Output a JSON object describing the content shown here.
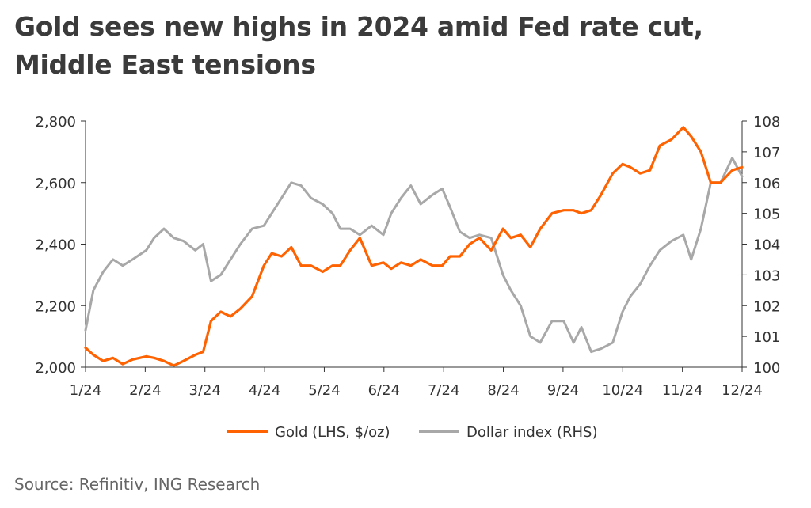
{
  "title": "Gold sees new highs in 2024 amid Fed rate cut, Middle East tensions",
  "source": "Source: Refinitiv, ING Research",
  "colors": {
    "gold": "#FF6200",
    "dollar": "#A8A8A8",
    "axis": "#333333"
  },
  "chart_data": {
    "type": "line",
    "title": "Gold sees new highs in 2024 amid Fed rate cut, Middle East tensions",
    "x_tick_labels": [
      "1/24",
      "2/24",
      "3/24",
      "4/24",
      "5/24",
      "6/24",
      "7/24",
      "8/24",
      "9/24",
      "10/24",
      "11/24",
      "12/24"
    ],
    "x_range": [
      "2024-01-01",
      "2024-12-01"
    ],
    "y_left": {
      "ylim": [
        2000,
        2800
      ],
      "ticks": [
        "2,000",
        "2,200",
        "2,400",
        "2,600",
        "2,800"
      ],
      "tick_values": [
        2000,
        2200,
        2400,
        2600,
        2800
      ]
    },
    "y_right": {
      "ylim": [
        100,
        108
      ],
      "ticks": [
        "100",
        "101",
        "102",
        "103",
        "104",
        "105",
        "106",
        "107",
        "108"
      ],
      "tick_values": [
        100,
        101,
        102,
        103,
        104,
        105,
        106,
        107,
        108
      ]
    },
    "legend_position": "bottom-center",
    "grid": false,
    "series": [
      {
        "name": "Gold (LHS, $/oz)",
        "axis": "left",
        "color": "#FF6200",
        "x": [
          "2024-01-01",
          "2024-01-05",
          "2024-01-10",
          "2024-01-15",
          "2024-01-20",
          "2024-01-25",
          "2024-02-01",
          "2024-02-05",
          "2024-02-10",
          "2024-02-15",
          "2024-02-20",
          "2024-02-26",
          "2024-03-01",
          "2024-03-05",
          "2024-03-10",
          "2024-03-15",
          "2024-03-20",
          "2024-03-26",
          "2024-04-01",
          "2024-04-05",
          "2024-04-10",
          "2024-04-15",
          "2024-04-20",
          "2024-04-25",
          "2024-05-01",
          "2024-05-06",
          "2024-05-10",
          "2024-05-15",
          "2024-05-20",
          "2024-05-26",
          "2024-06-01",
          "2024-06-05",
          "2024-06-10",
          "2024-06-15",
          "2024-06-20",
          "2024-06-26",
          "2024-07-01",
          "2024-07-05",
          "2024-07-10",
          "2024-07-15",
          "2024-07-20",
          "2024-07-26",
          "2024-08-01",
          "2024-08-05",
          "2024-08-10",
          "2024-08-15",
          "2024-08-20",
          "2024-08-26",
          "2024-09-01",
          "2024-09-06",
          "2024-09-10",
          "2024-09-15",
          "2024-09-20",
          "2024-09-26",
          "2024-10-01",
          "2024-10-05",
          "2024-10-10",
          "2024-10-15",
          "2024-10-20",
          "2024-10-26",
          "2024-11-01",
          "2024-11-05",
          "2024-11-10",
          "2024-11-15",
          "2024-11-20",
          "2024-11-26",
          "2024-12-01"
        ],
        "values": [
          2063,
          2040,
          2020,
          2030,
          2010,
          2025,
          2035,
          2030,
          2020,
          2005,
          2020,
          2040,
          2050,
          2150,
          2180,
          2165,
          2190,
          2230,
          2330,
          2370,
          2360,
          2390,
          2330,
          2330,
          2310,
          2330,
          2330,
          2380,
          2420,
          2330,
          2340,
          2320,
          2340,
          2330,
          2350,
          2330,
          2330,
          2360,
          2360,
          2400,
          2420,
          2380,
          2450,
          2420,
          2430,
          2390,
          2450,
          2500,
          2510,
          2510,
          2500,
          2510,
          2560,
          2630,
          2660,
          2650,
          2630,
          2640,
          2720,
          2740,
          2780,
          2750,
          2700,
          2600,
          2600,
          2640,
          2650
        ]
      },
      {
        "name": "Dollar index (RHS)",
        "axis": "right",
        "color": "#A8A8A8",
        "x": [
          "2024-01-01",
          "2024-01-05",
          "2024-01-10",
          "2024-01-15",
          "2024-01-20",
          "2024-01-25",
          "2024-02-01",
          "2024-02-05",
          "2024-02-10",
          "2024-02-15",
          "2024-02-20",
          "2024-02-26",
          "2024-03-01",
          "2024-03-05",
          "2024-03-10",
          "2024-03-15",
          "2024-03-20",
          "2024-03-26",
          "2024-04-01",
          "2024-04-05",
          "2024-04-10",
          "2024-04-15",
          "2024-04-20",
          "2024-04-25",
          "2024-05-01",
          "2024-05-06",
          "2024-05-10",
          "2024-05-15",
          "2024-05-20",
          "2024-05-26",
          "2024-06-01",
          "2024-06-05",
          "2024-06-10",
          "2024-06-15",
          "2024-06-20",
          "2024-06-26",
          "2024-07-01",
          "2024-07-05",
          "2024-07-10",
          "2024-07-15",
          "2024-07-20",
          "2024-07-26",
          "2024-08-01",
          "2024-08-05",
          "2024-08-10",
          "2024-08-15",
          "2024-08-20",
          "2024-08-26",
          "2024-09-01",
          "2024-09-06",
          "2024-09-10",
          "2024-09-15",
          "2024-09-20",
          "2024-09-26",
          "2024-10-01",
          "2024-10-05",
          "2024-10-10",
          "2024-10-15",
          "2024-10-20",
          "2024-10-26",
          "2024-11-01",
          "2024-11-05",
          "2024-11-10",
          "2024-11-15",
          "2024-11-20",
          "2024-11-26",
          "2024-12-01"
        ],
        "values": [
          101.2,
          102.5,
          103.1,
          103.5,
          103.3,
          103.5,
          103.8,
          104.2,
          104.5,
          104.2,
          104.1,
          103.8,
          104.0,
          102.8,
          103.0,
          103.5,
          104.0,
          104.5,
          104.6,
          105.0,
          105.5,
          106.0,
          105.9,
          105.5,
          105.3,
          105.0,
          104.5,
          104.5,
          104.3,
          104.6,
          104.3,
          105.0,
          105.5,
          105.9,
          105.3,
          105.6,
          105.8,
          105.2,
          104.4,
          104.2,
          104.3,
          104.2,
          103.0,
          102.5,
          102.0,
          101.0,
          100.8,
          101.5,
          101.5,
          100.8,
          101.3,
          100.5,
          100.6,
          100.8,
          101.8,
          102.3,
          102.7,
          103.3,
          103.8,
          104.1,
          104.3,
          103.5,
          104.5,
          106.0,
          106.0,
          106.8,
          106.2
        ]
      }
    ]
  }
}
